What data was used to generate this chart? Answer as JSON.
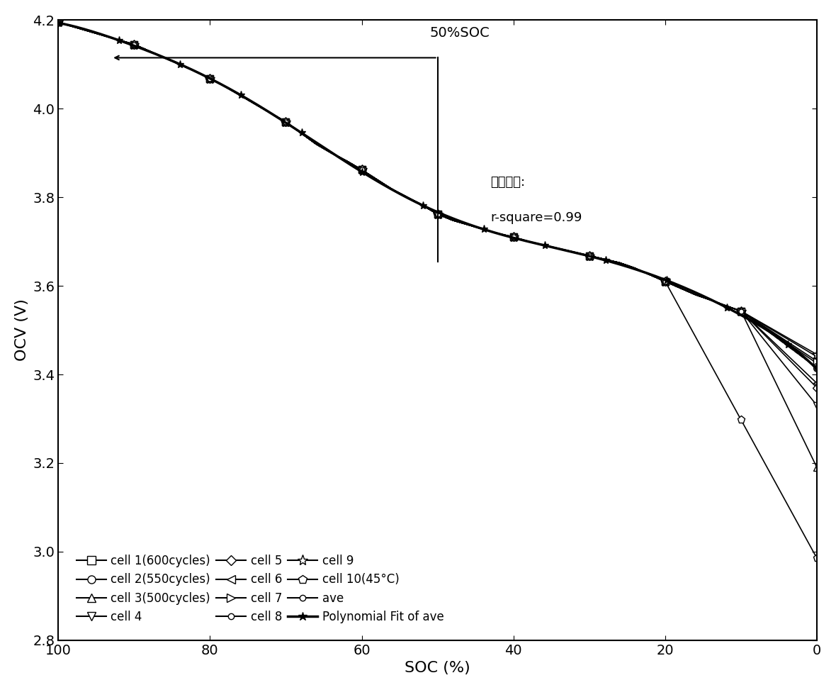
{
  "xlabel": "SOC (%)",
  "ylabel": "OCV (V)",
  "xlim": [
    100,
    0
  ],
  "ylim": [
    2.8,
    4.2
  ],
  "xticks": [
    100,
    80,
    60,
    40,
    20,
    0
  ],
  "yticks": [
    2.8,
    3.0,
    3.2,
    3.4,
    3.6,
    3.8,
    4.0,
    4.2
  ],
  "annotation_text": "50%SOC",
  "corr_text_line1": "相关系数:",
  "corr_text_line2": "r-square=0.99",
  "background_color": "#ffffff"
}
